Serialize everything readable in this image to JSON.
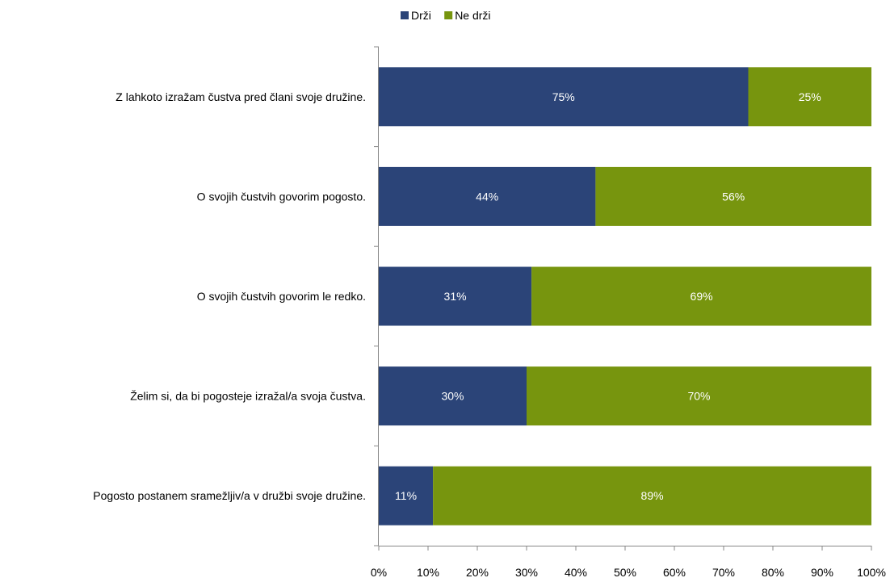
{
  "chart_data": {
    "type": "bar",
    "orientation": "horizontal",
    "stacked": true,
    "percent_stacked": true,
    "categories": [
      "Z lahkoto izražam  čustva pred člani svoje družine.",
      "O svojih čustvih govorim pogosto.",
      "O svojih čustvih govorim le redko.",
      "Želim si, da bi pogosteje izražal/a svoja čustva.",
      "Pogosto postanem sramežljiv/a v družbi svoje družine."
    ],
    "series": [
      {
        "name": "Drži",
        "values": [
          75,
          44,
          31,
          30,
          11
        ],
        "labels": [
          "75%",
          "44%",
          "31%",
          "30%",
          "11%"
        ],
        "color": "#2B4478"
      },
      {
        "name": "Ne drži",
        "values": [
          25,
          56,
          69,
          70,
          89
        ],
        "labels": [
          "25%",
          "56%",
          "69%",
          "70%",
          "89%"
        ],
        "color": "#77950E"
      }
    ],
    "xlim": [
      0,
      100
    ],
    "x_ticks": [
      "0%",
      "10%",
      "20%",
      "30%",
      "40%",
      "50%",
      "60%",
      "70%",
      "80%",
      "90%",
      "100%"
    ],
    "legend_position": "top-center",
    "grid": false,
    "title": "",
    "xlabel": "",
    "ylabel": ""
  }
}
